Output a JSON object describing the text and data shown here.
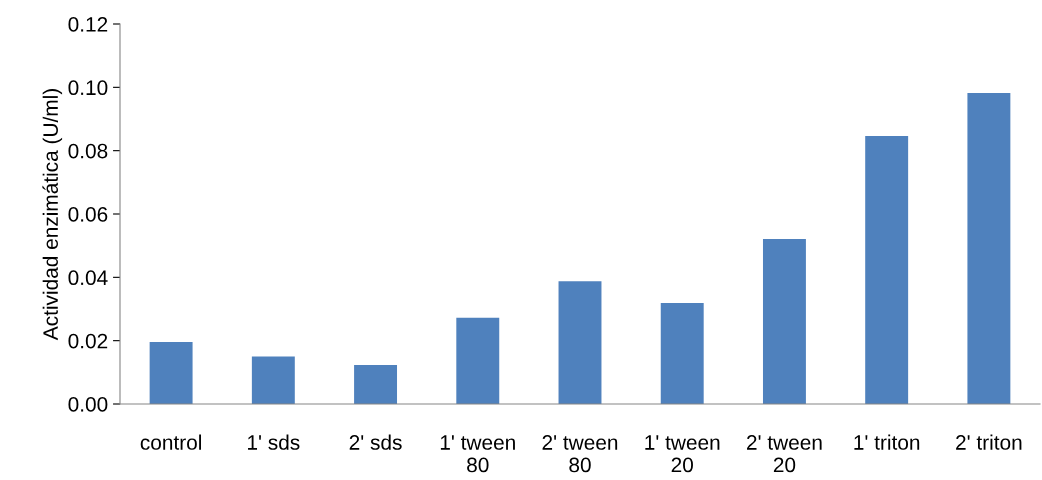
{
  "chart_data": {
    "type": "bar",
    "ylabel": "Actividad enzimática (U/ml)",
    "categories": [
      "control",
      "1' sds",
      "2' sds",
      "1' tween 80",
      "2' tween 80",
      "1' tween 20",
      "2' tween 20",
      "1' triton",
      "2' triton"
    ],
    "values": [
      0.0196,
      0.015,
      0.0123,
      0.0272,
      0.0388,
      0.0319,
      0.0521,
      0.0846,
      0.0982
    ],
    "color": "#4f81bd",
    "ylim": [
      0,
      0.12
    ],
    "yticks": [
      {
        "value": 0,
        "label": "0.00"
      },
      {
        "value": 0.02,
        "label": "0.02"
      },
      {
        "value": 0.04,
        "label": "0.04"
      },
      {
        "value": 0.06,
        "label": "0.06"
      },
      {
        "value": 0.08,
        "label": "0.08"
      },
      {
        "value": 0.1,
        "label": "0.10"
      },
      {
        "value": 0.12,
        "label": "0.12"
      }
    ],
    "grid": false,
    "legend": false
  }
}
